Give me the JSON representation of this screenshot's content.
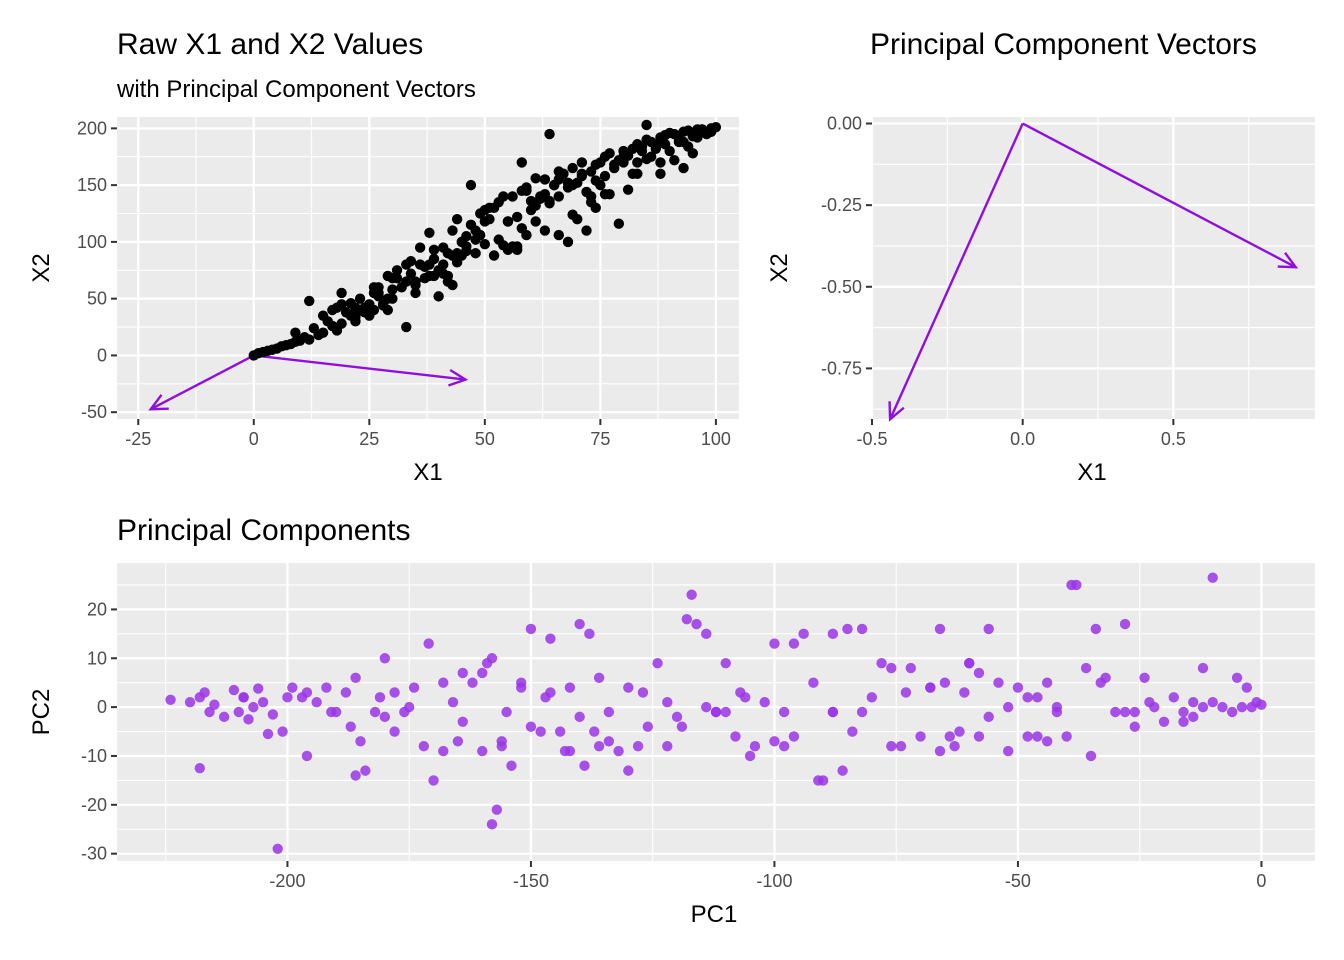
{
  "chart_data": [
    {
      "type": "scatter",
      "title": "Raw X1 and X2 Values",
      "subtitle": "with Principal Component Vectors",
      "xlabel": "X1",
      "ylabel": "X2",
      "xlim": [
        -29.6,
        105
      ],
      "ylim": [
        -56,
        210
      ],
      "x_ticks": [
        "-25",
        "0",
        "25",
        "50",
        "75",
        "100"
      ],
      "y_ticks": [
        "-50",
        "0",
        "50",
        "100",
        "150",
        "200"
      ],
      "grid": true,
      "point_color": "#000000",
      "points_x": [
        0,
        2,
        5,
        8,
        1,
        3,
        6,
        9,
        12,
        15,
        4,
        7,
        10,
        14,
        18,
        11,
        13,
        16,
        19,
        22,
        17,
        20,
        23,
        25,
        28,
        21,
        24,
        26,
        29,
        27,
        30,
        33,
        35,
        38,
        40,
        31,
        34,
        36,
        39,
        42,
        37,
        41,
        43,
        45,
        48,
        44,
        46,
        47,
        49,
        50,
        52,
        55,
        58,
        53,
        56,
        60,
        57,
        59,
        62,
        65,
        61,
        63,
        66,
        68,
        64,
        67,
        70,
        72,
        69,
        71,
        73,
        75,
        74,
        76,
        78,
        77,
        79,
        80,
        82,
        81,
        83,
        85,
        84,
        86,
        88,
        87,
        89,
        90,
        92,
        91,
        93,
        95,
        94,
        96,
        98,
        97,
        99,
        100,
        64,
        85,
        47,
        26,
        33,
        58,
        72,
        19,
        41,
        12,
        54,
        88,
        93,
        68,
        36,
        80,
        25,
        61,
        44,
        9,
        77,
        51,
        15,
        29,
        70,
        95,
        57,
        38,
        83,
        22,
        66,
        48,
        90,
        31,
        74,
        43,
        59,
        86,
        35,
        63,
        20,
        81,
        52,
        27,
        69,
        46,
        97,
        40,
        56,
        75,
        23,
        88,
        62,
        34,
        79,
        50,
        17,
        71,
        45,
        91,
        30,
        66,
        55,
        84,
        37,
        28,
        60,
        42,
        76,
        21,
        53,
        94,
        65,
        39,
        82,
        49,
        73,
        18,
        58,
        32,
        87,
        67,
        44,
        99,
        26,
        63,
        80,
        24,
        57,
        71,
        41,
        92,
        35,
        68,
        48,
        85,
        19,
        76,
        54,
        30,
        64,
        89,
        46,
        73,
        38,
        59,
        83,
        27,
        51,
        96,
        69,
        43,
        78,
        33,
        61,
        87,
        50,
        22,
        74,
        39,
        66,
        93,
        55,
        42,
        81,
        29
      ],
      "points_y": [
        0,
        3,
        6,
        10,
        2,
        4,
        8,
        12,
        14,
        20,
        5,
        9,
        13,
        18,
        22,
        16,
        24,
        30,
        28,
        34,
        26,
        38,
        40,
        35,
        44,
        46,
        42,
        55,
        50,
        60,
        58,
        65,
        62,
        70,
        75,
        68,
        72,
        80,
        85,
        90,
        78,
        95,
        88,
        100,
        110,
        120,
        105,
        115,
        125,
        98,
        130,
        118,
        112,
        135,
        140,
        128,
        122,
        145,
        138,
        150,
        132,
        142,
        155,
        148,
        136,
        160,
        152,
        144,
        165,
        158,
        162,
        170,
        154,
        175,
        168,
        178,
        172,
        180,
        182,
        176,
        186,
        190,
        184,
        188,
        192,
        185,
        194,
        196,
        191,
        195,
        197,
        193,
        198,
        199,
        195,
        199,
        200,
        201,
        195,
        203,
        150,
        60,
        25,
        170,
        110,
        55,
        72,
        48,
        140,
        160,
        165,
        100,
        95,
        170,
        45,
        118,
        82,
        20,
        142,
        130,
        35,
        40,
        120,
        178,
        96,
        108,
        160,
        30,
        162,
        90,
        180,
        75,
        130,
        62,
        106,
        175,
        55,
        155,
        38,
        146,
        88,
        52,
        124,
        96,
        199,
        52,
        96,
        150,
        50,
        170,
        140,
        83,
        116,
        128,
        40,
        160,
        88,
        172,
        50,
        106,
        93,
        180,
        68,
        45,
        136,
        70,
        142,
        35,
        102,
        184,
        150,
        70,
        160,
        106,
        135,
        42,
        145,
        60,
        185,
        160,
        90,
        197,
        40,
        110,
        175,
        38,
        93,
        170,
        80,
        188,
        65,
        152,
        102,
        173,
        45,
        158,
        97,
        68,
        134,
        186,
        92,
        140,
        80,
        148,
        170,
        55,
        120,
        192,
        150,
        110,
        165,
        80,
        156,
        182,
        118,
        42,
        168,
        93,
        140,
        188,
        118,
        65,
        176,
        70
      ],
      "arrows": [
        {
          "x0": 0,
          "y0": 0,
          "x1": 45.8,
          "y1": -21.3
        },
        {
          "x0": 0,
          "y0": 0,
          "x1": -22.3,
          "y1": -47.4
        }
      ],
      "arrow_color": "#8f0fe0"
    },
    {
      "type": "line",
      "title": "Principal Component Vectors",
      "xlabel": "X1",
      "ylabel": "X2",
      "xlim": [
        -0.5,
        0.97
      ],
      "ylim": [
        -0.905,
        0.02
      ],
      "x_ticks": [
        "-0.5",
        "0.0",
        "0.5"
      ],
      "y_ticks": [
        "0.00",
        "-0.25",
        "-0.50",
        "-0.75"
      ],
      "grid": true,
      "arrows": [
        {
          "x0": 0,
          "y0": 0,
          "x1": 0.906,
          "y1": -0.44
        },
        {
          "x0": 0,
          "y0": 0,
          "x1": -0.44,
          "y1": -0.906
        }
      ],
      "arrow_color": "#8f0fe0"
    },
    {
      "type": "scatter",
      "title": "Principal Components",
      "xlabel": "PC1",
      "ylabel": "PC2",
      "xlim": [
        -235,
        11
      ],
      "ylim": [
        -31.5,
        29.5
      ],
      "x_ticks": [
        "-200",
        "-150",
        "-100",
        "-50",
        "0"
      ],
      "y_ticks": [
        "20",
        "10",
        "0",
        "-10",
        "-20",
        "-30"
      ],
      "grid": true,
      "point_color": "#9b35e8",
      "points_x": [
        -224,
        -220,
        -218,
        -217,
        -216,
        -215,
        -213,
        -211,
        -210,
        -209,
        -208,
        -207,
        -206,
        -205,
        -204,
        -203,
        -201,
        -199,
        -197,
        -196,
        -194,
        -192,
        -190,
        -188,
        -186,
        -184,
        -182,
        -180,
        -178,
        -176,
        -174,
        -172,
        -170,
        -168,
        -166,
        -164,
        -162,
        -160,
        -158,
        -156,
        -154,
        -152,
        -150,
        -148,
        -146,
        -144,
        -142,
        -140,
        -138,
        -136,
        -134,
        -132,
        -130,
        -128,
        -126,
        -124,
        -122,
        -120,
        -118,
        -116,
        -114,
        -112,
        -110,
        -108,
        -106,
        -104,
        -102,
        -100,
        -98,
        -96,
        -94,
        -92,
        -90,
        -88,
        -86,
        -84,
        -82,
        -80,
        -78,
        -76,
        -74,
        -72,
        -70,
        -68,
        -66,
        -64,
        -62,
        -60,
        -58,
        -56,
        -54,
        -52,
        -50,
        -48,
        -46,
        -44,
        -42,
        -40,
        -38,
        -36,
        -34,
        -32,
        -30,
        -28,
        -26,
        -24,
        -22,
        -20,
        -18,
        -16,
        -14,
        -12,
        -10,
        -8,
        -6,
        -4,
        -3,
        -2,
        -1,
        0,
        -218,
        -202,
        -158,
        -117,
        -39,
        -10,
        -159,
        -142,
        -157,
        -91,
        -65,
        -185,
        -200,
        -191,
        -152,
        -134,
        -171,
        -160,
        -180,
        -147,
        -105,
        -88,
        -68,
        -56,
        -150,
        -112,
        -122,
        -181,
        -140,
        -175,
        -96,
        -60,
        -33,
        -137,
        -164,
        -187,
        -130,
        -146,
        -76,
        -48,
        -110,
        -168,
        -155,
        -114,
        -85,
        -52,
        -16,
        -186,
        -143,
        -107,
        -66,
        -28,
        -196,
        -156,
        -119,
        -82,
        -61,
        -44,
        -26,
        -209,
        -136,
        -100,
        -58,
        -35,
        -14,
        -178,
        -139,
        -98,
        -73,
        -46,
        -23,
        -5,
        -165,
        -127,
        -88,
        -63,
        -42,
        -12
      ],
      "points_y": [
        1.5,
        1,
        2,
        3,
        -1,
        0.5,
        -2,
        3.5,
        -1,
        2,
        -2.5,
        0,
        3.8,
        1,
        -5.5,
        -1.5,
        -5,
        4,
        2,
        -10,
        1,
        4,
        -1,
        3,
        -14,
        -13,
        -1,
        10,
        3,
        -1,
        4,
        -8,
        -15,
        -9,
        1,
        7,
        5,
        -9,
        10,
        -8,
        -12,
        4,
        16,
        -5,
        14,
        -5,
        -9,
        17,
        15,
        -8,
        -7,
        -9,
        -13,
        -8,
        -4,
        9,
        1,
        -2,
        18,
        17,
        15,
        -1,
        9,
        -6,
        2,
        -8,
        1,
        -7,
        -8,
        13,
        15,
        5,
        -15,
        15,
        -13,
        -5,
        16,
        2,
        9,
        8,
        -8,
        8,
        -6,
        4,
        16,
        -6,
        -5,
        9,
        -6,
        16,
        5,
        0,
        4,
        -6,
        2,
        -7,
        -1,
        -6,
        25,
        8,
        16,
        6,
        -1,
        17,
        -4,
        6,
        0,
        -3,
        2,
        -1,
        1,
        0,
        1,
        0,
        -1,
        0,
        4,
        0,
        1,
        0.5,
        -12.5,
        -29,
        -24,
        23,
        25,
        26.5,
        9,
        4,
        -21,
        -15,
        5,
        -7,
        2,
        -1,
        5,
        -1,
        13,
        7,
        -2,
        2,
        -10,
        -1,
        4,
        -2,
        -4,
        -1,
        -8,
        2,
        -2,
        0,
        -6,
        9,
        5,
        -5,
        -3,
        -4,
        4,
        3,
        -8,
        2,
        -1,
        5,
        -1,
        0,
        16,
        -9,
        -3,
        6,
        -9,
        3,
        -9,
        -1,
        3,
        -7,
        -4,
        -1,
        3,
        5,
        -1,
        2,
        6,
        13,
        7,
        -10,
        -2,
        -5,
        -12,
        -1,
        3,
        -6,
        1,
        6,
        -7,
        3,
        -1,
        -8,
        0,
        8,
        1,
        -6,
        -3,
        1
      ],
      "note_count": ""
    }
  ]
}
